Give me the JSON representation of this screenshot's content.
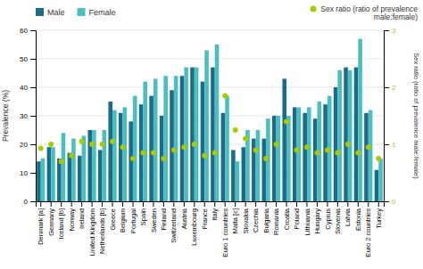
{
  "chart_data": {
    "type": "bar",
    "categories": [
      "Denmark [a]",
      "Germany",
      "Iceland [b]",
      "Norway",
      "Ireland",
      "United Kingdom",
      "Netherlands [b]",
      "Greece",
      "Belgium",
      "Portugal",
      "Spain",
      "Sweden",
      "Finland",
      "Switzerland",
      "Austria",
      "Luxembourg",
      "France",
      "Italy",
      "Euro 1 countries",
      "Malta [c]",
      "Slovakia",
      "Czechia",
      "Bulgaria",
      "Romania",
      "Croatia",
      "Poland",
      "Lithuania",
      "Hungary",
      "Cyprus",
      "Slovenia",
      "Latvia",
      "Estonia",
      "Euro 2 countries",
      "Turkey"
    ],
    "series": [
      {
        "name": "Male",
        "color": "#1b6b8a",
        "values": [
          14,
          19,
          15,
          17,
          16,
          25,
          18,
          35,
          31,
          28,
          34,
          37,
          30,
          39,
          44,
          47,
          42,
          47,
          31,
          18,
          19,
          22,
          22,
          30,
          43,
          33,
          31,
          29,
          34,
          40,
          47,
          47,
          31,
          11
        ]
      },
      {
        "name": "Female",
        "color": "#4bbfbf",
        "values": [
          15,
          19,
          24,
          22,
          23,
          25,
          25,
          32,
          33,
          37,
          42,
          43,
          44,
          44,
          47,
          47,
          53,
          55,
          37,
          14,
          25,
          25,
          29,
          30,
          30,
          33,
          33,
          35,
          37,
          46,
          46,
          57,
          32,
          15
        ]
      },
      {
        "name": "Sex ratio (ratio of prevalence\nmale:female)",
        "type": "scatter",
        "axis": "y2",
        "color": "#aac900",
        "marker": "circle",
        "values": [
          0.93,
          1.0,
          0.7,
          0.8,
          1.05,
          1.0,
          1.0,
          1.05,
          0.95,
          0.75,
          0.85,
          0.85,
          0.75,
          0.9,
          0.95,
          1.0,
          0.8,
          0.85,
          1.85,
          1.25,
          1.1,
          0.9,
          0.75,
          1.0,
          1.4,
          0.9,
          0.95,
          0.85,
          0.9,
          0.85,
          1.0,
          0.85,
          0.95,
          0.75
        ]
      }
    ],
    "ylabel": "Prevalence (%)",
    "y2label": "Sex ratio (ratio of prevalence male:female)",
    "ylim": [
      0,
      60
    ],
    "yticks": [
      0,
      10,
      20,
      30,
      40,
      50,
      60
    ],
    "y2lim": [
      0,
      3
    ],
    "y2ticks": [
      0,
      1,
      2,
      3
    ],
    "grid": true,
    "legend": "top"
  }
}
